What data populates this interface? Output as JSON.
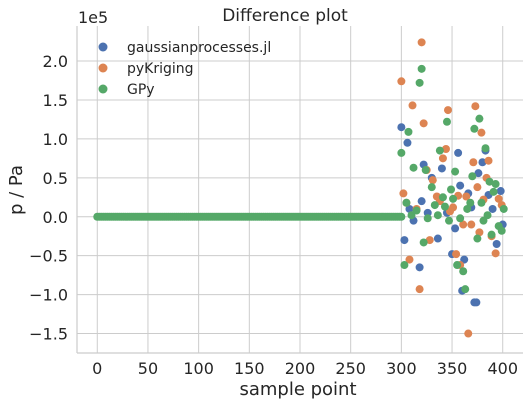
{
  "chart_data": {
    "type": "scatter",
    "title": "Difference plot",
    "xlabel": "sample point",
    "ylabel": "p / Pa",
    "y_scale_label": "1e5",
    "xlim": [
      -20,
      420
    ],
    "ylim": [
      -1.75,
      2.45
    ],
    "x_ticks": [
      0,
      50,
      100,
      150,
      200,
      250,
      300,
      350,
      400
    ],
    "x_tick_labels": [
      "0",
      "50",
      "100",
      "150",
      "200",
      "250",
      "300",
      "350",
      "400"
    ],
    "y_ticks": [
      -1.5,
      -1.0,
      -0.5,
      0.0,
      0.5,
      1.0,
      1.5,
      2.0
    ],
    "y_tick_labels": [
      "−1.5",
      "−1.0",
      "−0.5",
      "0.0",
      "0.5",
      "1.0",
      "1.5",
      "2.0"
    ],
    "grid": true,
    "legend_position": "top-left",
    "baseline": {
      "x_start": 0,
      "x_end": 300,
      "y": 0
    },
    "series": [
      {
        "name": "gaussianprocesses.jl",
        "color": "#4c72b0",
        "points": [
          [
            300,
            1.15
          ],
          [
            303,
            -0.3
          ],
          [
            306,
            0.95
          ],
          [
            308,
            0.1
          ],
          [
            312,
            -0.05
          ],
          [
            318,
            -0.65
          ],
          [
            320,
            0.2
          ],
          [
            322,
            0.67
          ],
          [
            326,
            0.05
          ],
          [
            330,
            0.5
          ],
          [
            336,
            -0.28
          ],
          [
            340,
            0.62
          ],
          [
            345,
            0.05
          ],
          [
            350,
            -0.48
          ],
          [
            353,
            -0.15
          ],
          [
            356,
            0.82
          ],
          [
            358,
            0.4
          ],
          [
            360,
            -0.95
          ],
          [
            362,
            -0.55
          ],
          [
            366,
            0.3
          ],
          [
            369,
            0.12
          ],
          [
            372,
            -1.1
          ],
          [
            374,
            -1.1
          ],
          [
            376,
            0.56
          ],
          [
            380,
            0.7
          ],
          [
            383,
            0.85
          ],
          [
            386,
            0.28
          ],
          [
            390,
            0.1
          ],
          [
            394,
            -0.35
          ],
          [
            398,
            0.33
          ],
          [
            400,
            -0.1
          ]
        ]
      },
      {
        "name": "pyKriging",
        "color": "#dd8452",
        "points": [
          [
            300,
            1.74
          ],
          [
            302,
            0.3
          ],
          [
            305,
            0.18
          ],
          [
            308,
            -0.55
          ],
          [
            311,
            1.43
          ],
          [
            315,
            0.1
          ],
          [
            318,
            -0.93
          ],
          [
            320,
            2.24
          ],
          [
            322,
            1.2
          ],
          [
            325,
            0.6
          ],
          [
            328,
            -0.3
          ],
          [
            331,
            0.47
          ],
          [
            335,
            0.26
          ],
          [
            338,
            0.2
          ],
          [
            341,
            0.75
          ],
          [
            344,
            0.87
          ],
          [
            346,
            1.37
          ],
          [
            348,
            0.07
          ],
          [
            351,
            0.12
          ],
          [
            354,
            -0.48
          ],
          [
            356,
            0.27
          ],
          [
            358,
            -0.62
          ],
          [
            361,
            -0.1
          ],
          [
            364,
            0.26
          ],
          [
            366,
            -1.5
          ],
          [
            369,
            -0.1
          ],
          [
            371,
            0.7
          ],
          [
            373,
            1.42
          ],
          [
            375,
            0.38
          ],
          [
            377,
            -0.2
          ],
          [
            379,
            1.08
          ],
          [
            381,
            0.22
          ],
          [
            384,
            0.5
          ],
          [
            386,
            0.72
          ],
          [
            389,
            -0.25
          ],
          [
            393,
            -0.47
          ],
          [
            396,
            0.23
          ],
          [
            399,
            0.15
          ]
        ]
      },
      {
        "name": "GPy",
        "color": "#55a868",
        "points": [
          [
            300,
            0.82
          ],
          [
            303,
            -0.62
          ],
          [
            305,
            0.18
          ],
          [
            307,
            1.09
          ],
          [
            310,
            0.02
          ],
          [
            312,
            0.63
          ],
          [
            315,
            0.08
          ],
          [
            318,
            1.72
          ],
          [
            320,
            1.9
          ],
          [
            322,
            -0.33
          ],
          [
            324,
            0.6
          ],
          [
            326,
            -0.02
          ],
          [
            330,
            0.38
          ],
          [
            333,
            0.15
          ],
          [
            336,
            0.02
          ],
          [
            338,
            0.85
          ],
          [
            341,
            0.25
          ],
          [
            343,
            0.13
          ],
          [
            345,
            1.22
          ],
          [
            347,
            -0.05
          ],
          [
            349,
            0.35
          ],
          [
            351,
            0.23
          ],
          [
            353,
            0.58
          ],
          [
            355,
            -0.62
          ],
          [
            358,
            -0.02
          ],
          [
            361,
            -0.7
          ],
          [
            363,
            -0.93
          ],
          [
            365,
            0.1
          ],
          [
            368,
            0.18
          ],
          [
            370,
            0.52
          ],
          [
            372,
            1.13
          ],
          [
            375,
            -0.28
          ],
          [
            377,
            1.26
          ],
          [
            379,
            0.18
          ],
          [
            381,
            -0.05
          ],
          [
            383,
            0.88
          ],
          [
            385,
            0.02
          ],
          [
            387,
            0.45
          ],
          [
            389,
            -0.23
          ],
          [
            391,
            0.32
          ],
          [
            393,
            0.42
          ],
          [
            396,
            -0.12
          ],
          [
            399,
            -0.18
          ],
          [
            401,
            0.1
          ]
        ]
      }
    ]
  }
}
